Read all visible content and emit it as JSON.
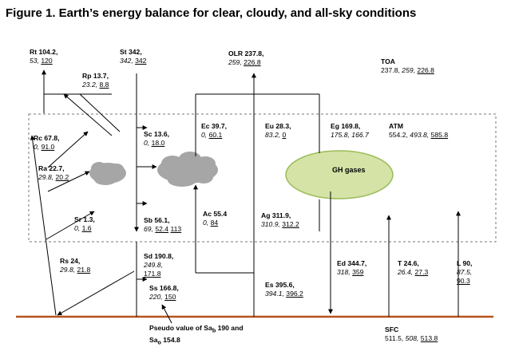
{
  "title": "Figure 1. Earth’s energy balance for clear, cloudy, and all-sky conditions",
  "colors": {
    "surface_line": "#b5541c",
    "dashed_box": "#777777",
    "cloud_fill": "#a6a6a6",
    "gh_fill": "#d5e3a6",
    "gh_stroke": "#9bbb59"
  },
  "gh_gases": "GH gases",
  "labels": {
    "rt": {
      "name": "Rt 104.2,",
      "v1": "53,",
      "v2": "120"
    },
    "st": {
      "name": "St 342,",
      "v1": "342,",
      "v2": "342"
    },
    "olr": {
      "name": "OLR 237.8,",
      "v1": "259,",
      "v2": "226.8"
    },
    "toa": {
      "name": "TOA",
      "v0": "237.8,",
      "v1": "259,",
      "v2": "226.8"
    },
    "rp": {
      "name": "Rp 13.7,",
      "v1": "23.2,",
      "v2": "8.8"
    },
    "rc": {
      "name": "Rc 67.8,",
      "v1": "0,",
      "v2": "91.0"
    },
    "sc": {
      "name": "Sc 13.6,",
      "v1": "0,",
      "v2": "18.0"
    },
    "ec": {
      "name": "Ec 39.7,",
      "v1": "0,",
      "v2": "60.1"
    },
    "eu": {
      "name": "Eu 28.3,",
      "v1": "83.2,",
      "v2": "0"
    },
    "eg": {
      "name": "Eg 169.8,",
      "v1": "175.8,",
      "v2": "166.7"
    },
    "atm": {
      "name": "ATM",
      "v0": "554.2,",
      "v1": "493.8,",
      "v2": "585.8"
    },
    "ra": {
      "name": "Ra 22.7,",
      "v1": "29.8,",
      "v2": "20.2"
    },
    "sr": {
      "name": "Sr 1.3,",
      "v1": "0,",
      "v2": "1.6"
    },
    "sb": {
      "name": "Sb 56.1,",
      "v1": "69,",
      "v2": "52.4",
      "v3": "113"
    },
    "ac": {
      "name": "Ac 55.4",
      "v1": "0,",
      "v2": "84"
    },
    "ag": {
      "name": "Ag 311.9,",
      "v1": "310.9,",
      "v2": "312.2"
    },
    "rs": {
      "name": "Rs 24,",
      "v1": "29.8,",
      "v2": "21.8"
    },
    "sd": {
      "name": "Sd  190.8,",
      "v1": "249.8,",
      "v2": "171.8"
    },
    "ed": {
      "name": "Ed 344.7,",
      "v1": "318,",
      "v2": "359"
    },
    "t": {
      "name": "T 24.6,",
      "v1": "26.4,",
      "v2": "27.3"
    },
    "l": {
      "name": "L 90,",
      "v1": "87.5,",
      "v2": "90.3"
    },
    "es": {
      "name": "Es 395.6,",
      "v1": "394.1,",
      "v2": "396.2"
    },
    "ss": {
      "name": "Ss 166.8,",
      "v1": "220,",
      "v2": "150"
    },
    "sfc": {
      "name": "SFC",
      "v0": "511.5,",
      "v1": "508,",
      "v2": "513.8"
    },
    "pseudo": {
      "line1_pre": "Pseudo",
      "line1_mid": " value of Sa",
      "line1_sub": "b",
      "line1_post": " 190 and",
      "line2_pre": "Sa",
      "line2_sub": "o",
      "line2_post": " 154.8"
    }
  }
}
